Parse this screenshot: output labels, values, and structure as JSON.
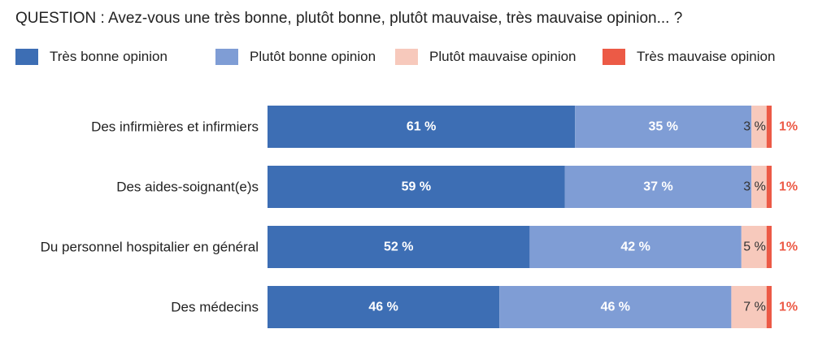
{
  "question": "QUESTION : Avez-vous une très bonne, plutôt bonne, plutôt mauvaise, très mauvaise opinion... ?",
  "chart_data": {
    "type": "bar",
    "orientation": "horizontal",
    "stacked": true,
    "categories": [
      "Des infirmières et infirmiers",
      "Des aides-soignant(e)s",
      "Du personnel hospitalier en général",
      "Des médecins"
    ],
    "series": [
      {
        "name": "Très bonne opinion",
        "color": "#3d6eb4",
        "values": [
          61,
          59,
          52,
          46
        ],
        "labels": [
          "61 %",
          "59 %",
          "52 %",
          "46 %"
        ]
      },
      {
        "name": "Plutôt bonne opinion",
        "color": "#7f9dd5",
        "values": [
          35,
          37,
          42,
          46
        ],
        "labels": [
          "35 %",
          "37 %",
          "42 %",
          "46 %"
        ]
      },
      {
        "name": "Plutôt mauvaise opinion",
        "color": "#f7c9bc",
        "values": [
          3,
          3,
          5,
          7
        ],
        "labels": [
          "3 %",
          "3 %",
          "5 %",
          "7 %"
        ]
      },
      {
        "name": "Très mauvaise opinion",
        "color": "#ec5a46",
        "values": [
          1,
          1,
          1,
          1
        ],
        "labels": [
          "1%",
          "1%",
          "1%",
          "1%"
        ]
      }
    ],
    "xlim": [
      0,
      100
    ],
    "grid": false,
    "legend_position": "top"
  }
}
